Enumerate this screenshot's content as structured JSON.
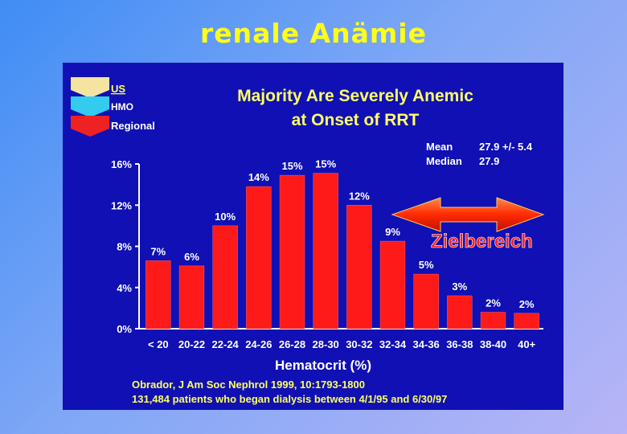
{
  "slide": {
    "title": "renale Anämie"
  },
  "colors": {
    "bar": "#ff1a1a",
    "panel_bg": "#1010b4",
    "title": "#ffff1a",
    "chart_title": "#ffff66",
    "arrow": "#ff3300"
  },
  "legend": [
    {
      "label": "US",
      "color": "#f4e4a0"
    },
    {
      "label": "HMO",
      "color": "#33ccee"
    },
    {
      "label": "Regional",
      "color": "#ee2222"
    }
  ],
  "stats": {
    "mean_label": "Mean",
    "mean_value": "27.9 +/- 5.4",
    "median_label": "Median",
    "median_value": "27.9"
  },
  "annotation": {
    "label": "Zielbereich",
    "arrow": "double-headed-arrow"
  },
  "footnote": {
    "line1": "Obrador, J Am Soc Nephrol 1999, 10:1793-1800",
    "line2": "131,484 patients who began dialysis  between 4/1/95 and 6/30/97"
  },
  "chart_data": {
    "type": "bar",
    "title": "Majority Are Severely Anemic",
    "subtitle": "at Onset of RRT",
    "xlabel": "Hematocrit (%)",
    "ylabel": "",
    "ylim": [
      0,
      16
    ],
    "yticks": [
      0,
      4,
      8,
      12,
      16
    ],
    "ytick_labels": [
      "0%",
      "4%",
      "8%",
      "12%",
      "16%"
    ],
    "categories": [
      "< 20",
      "20-22",
      "22-24",
      "24-26",
      "26-28",
      "28-30",
      "30-32",
      "32-34",
      "34-36",
      "36-38",
      "38-40",
      "40+"
    ],
    "values": [
      6.6,
      6.1,
      10.0,
      13.8,
      14.9,
      15.1,
      12.0,
      8.5,
      5.3,
      3.2,
      1.6,
      1.5
    ],
    "data_labels": [
      "7%",
      "6%",
      "10%",
      "14%",
      "15%",
      "15%",
      "12%",
      "9%",
      "5%",
      "3%",
      "2%",
      "2%"
    ],
    "grid": false,
    "legend_position": "top-left"
  }
}
